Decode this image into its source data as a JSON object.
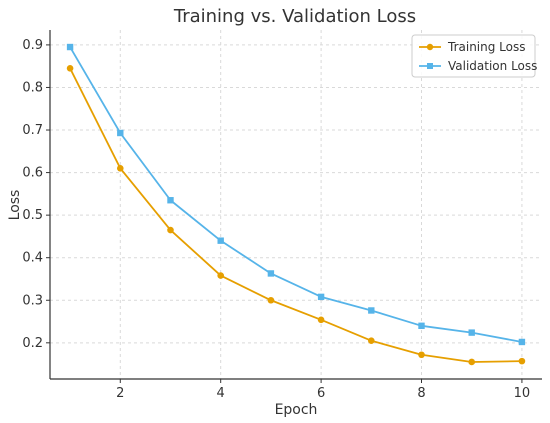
{
  "chart_data": {
    "type": "line",
    "title": "Training vs. Validation Loss",
    "xlabel": "Epoch",
    "ylabel": "Loss",
    "x": [
      1,
      2,
      3,
      4,
      5,
      6,
      7,
      8,
      9,
      10
    ],
    "xlim": [
      0.6,
      10.4
    ],
    "ylim": [
      0.115,
      0.935
    ],
    "xticks": [
      2,
      4,
      6,
      8,
      10
    ],
    "yticks": [
      0.2,
      0.3,
      0.4,
      0.5,
      0.6,
      0.7,
      0.8,
      0.9
    ],
    "grid": true,
    "legend_position": "top-right",
    "series": [
      {
        "name": "Training Loss",
        "color": "#E69F00",
        "marker": "circle",
        "values": [
          0.845,
          0.61,
          0.465,
          0.358,
          0.3,
          0.254,
          0.205,
          0.172,
          0.155,
          0.157
        ]
      },
      {
        "name": "Validation Loss",
        "color": "#56B4E9",
        "marker": "square",
        "values": [
          0.895,
          0.693,
          0.535,
          0.44,
          0.363,
          0.308,
          0.276,
          0.24,
          0.224,
          0.202
        ]
      }
    ]
  }
}
